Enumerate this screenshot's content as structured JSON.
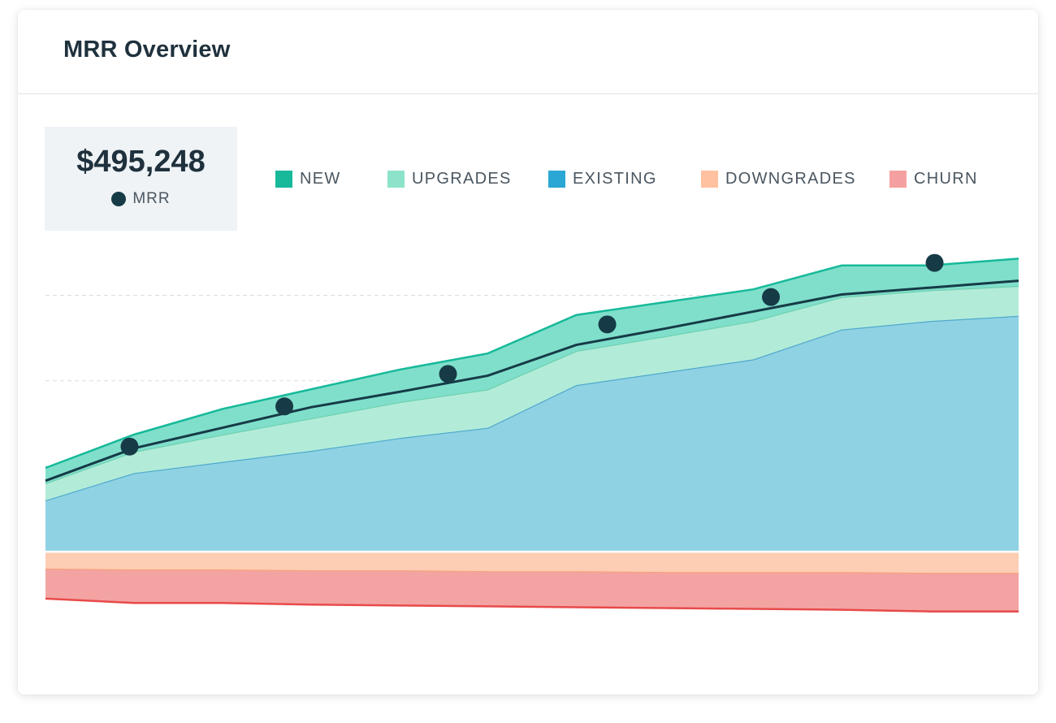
{
  "card": {
    "title": "MRR Overview"
  },
  "summary": {
    "value": "$495,248",
    "label": "MRR"
  },
  "legend": [
    {
      "label": "NEW",
      "color": "#17b99a"
    },
    {
      "label": "UPGRADES",
      "color": "#8de3c9"
    },
    {
      "label": "EXISTING",
      "color": "#2aa7d4"
    },
    {
      "label": "DOWNGRADES",
      "color": "#ffc19f"
    },
    {
      "label": "CHURN",
      "color": "#f5a0a0"
    }
  ],
  "chart_data": {
    "type": "area",
    "title": "",
    "xlabel": "",
    "ylabel": "",
    "grid": true,
    "x": [
      0,
      1,
      2,
      3,
      4,
      5,
      6,
      7,
      8,
      9,
      10,
      11
    ],
    "ylim": [
      -95,
      330
    ],
    "series": [
      {
        "name": "EXISTING",
        "color": "#8fd2e4",
        "line_color": "#52a9cc",
        "stack": "positive",
        "values": [
          60,
          92,
          105,
          118,
          133,
          145,
          195,
          210,
          225,
          260,
          270,
          276
        ]
      },
      {
        "name": "UPGRADES",
        "color": "#b2ecd9",
        "line_color": "#6fd1b0",
        "stack": "positive",
        "values": [
          20,
          25,
          32,
          38,
          42,
          45,
          40,
          42,
          45,
          38,
          36,
          35
        ]
      },
      {
        "name": "NEW",
        "color": "#80dfcb",
        "line_color": "#17b99a",
        "stack": "positive",
        "values": [
          18,
          20,
          30,
          34,
          38,
          42,
          42,
          40,
          37,
          37,
          29,
          32
        ]
      },
      {
        "name": "DOWNGRADES",
        "color": "#fdcdb4",
        "line_color": "#f7a27c",
        "stack": "negative",
        "values": [
          -21,
          -22,
          -22,
          -23,
          -23,
          -24,
          -24,
          -25,
          -25,
          -25,
          -26,
          -26
        ]
      },
      {
        "name": "CHURN",
        "color": "#f4a3a3",
        "line_color": "#e84a4a",
        "stack": "negative",
        "values": [
          -34,
          -38,
          -38,
          -39,
          -40,
          -40,
          -41,
          -41,
          -42,
          -43,
          -44,
          -44
        ]
      }
    ],
    "mrr": {
      "name": "MRR",
      "color": "#163b47",
      "line_values": [
        83,
        121,
        145,
        169,
        187,
        206,
        242,
        261,
        281,
        301,
        309,
        317
      ],
      "markers": [
        {
          "x": 0.95,
          "y": 123
        },
        {
          "x": 2.7,
          "y": 170
        },
        {
          "x": 4.55,
          "y": 208
        },
        {
          "x": 6.35,
          "y": 266
        },
        {
          "x": 8.2,
          "y": 298
        },
        {
          "x": 10.05,
          "y": 338
        }
      ]
    }
  }
}
